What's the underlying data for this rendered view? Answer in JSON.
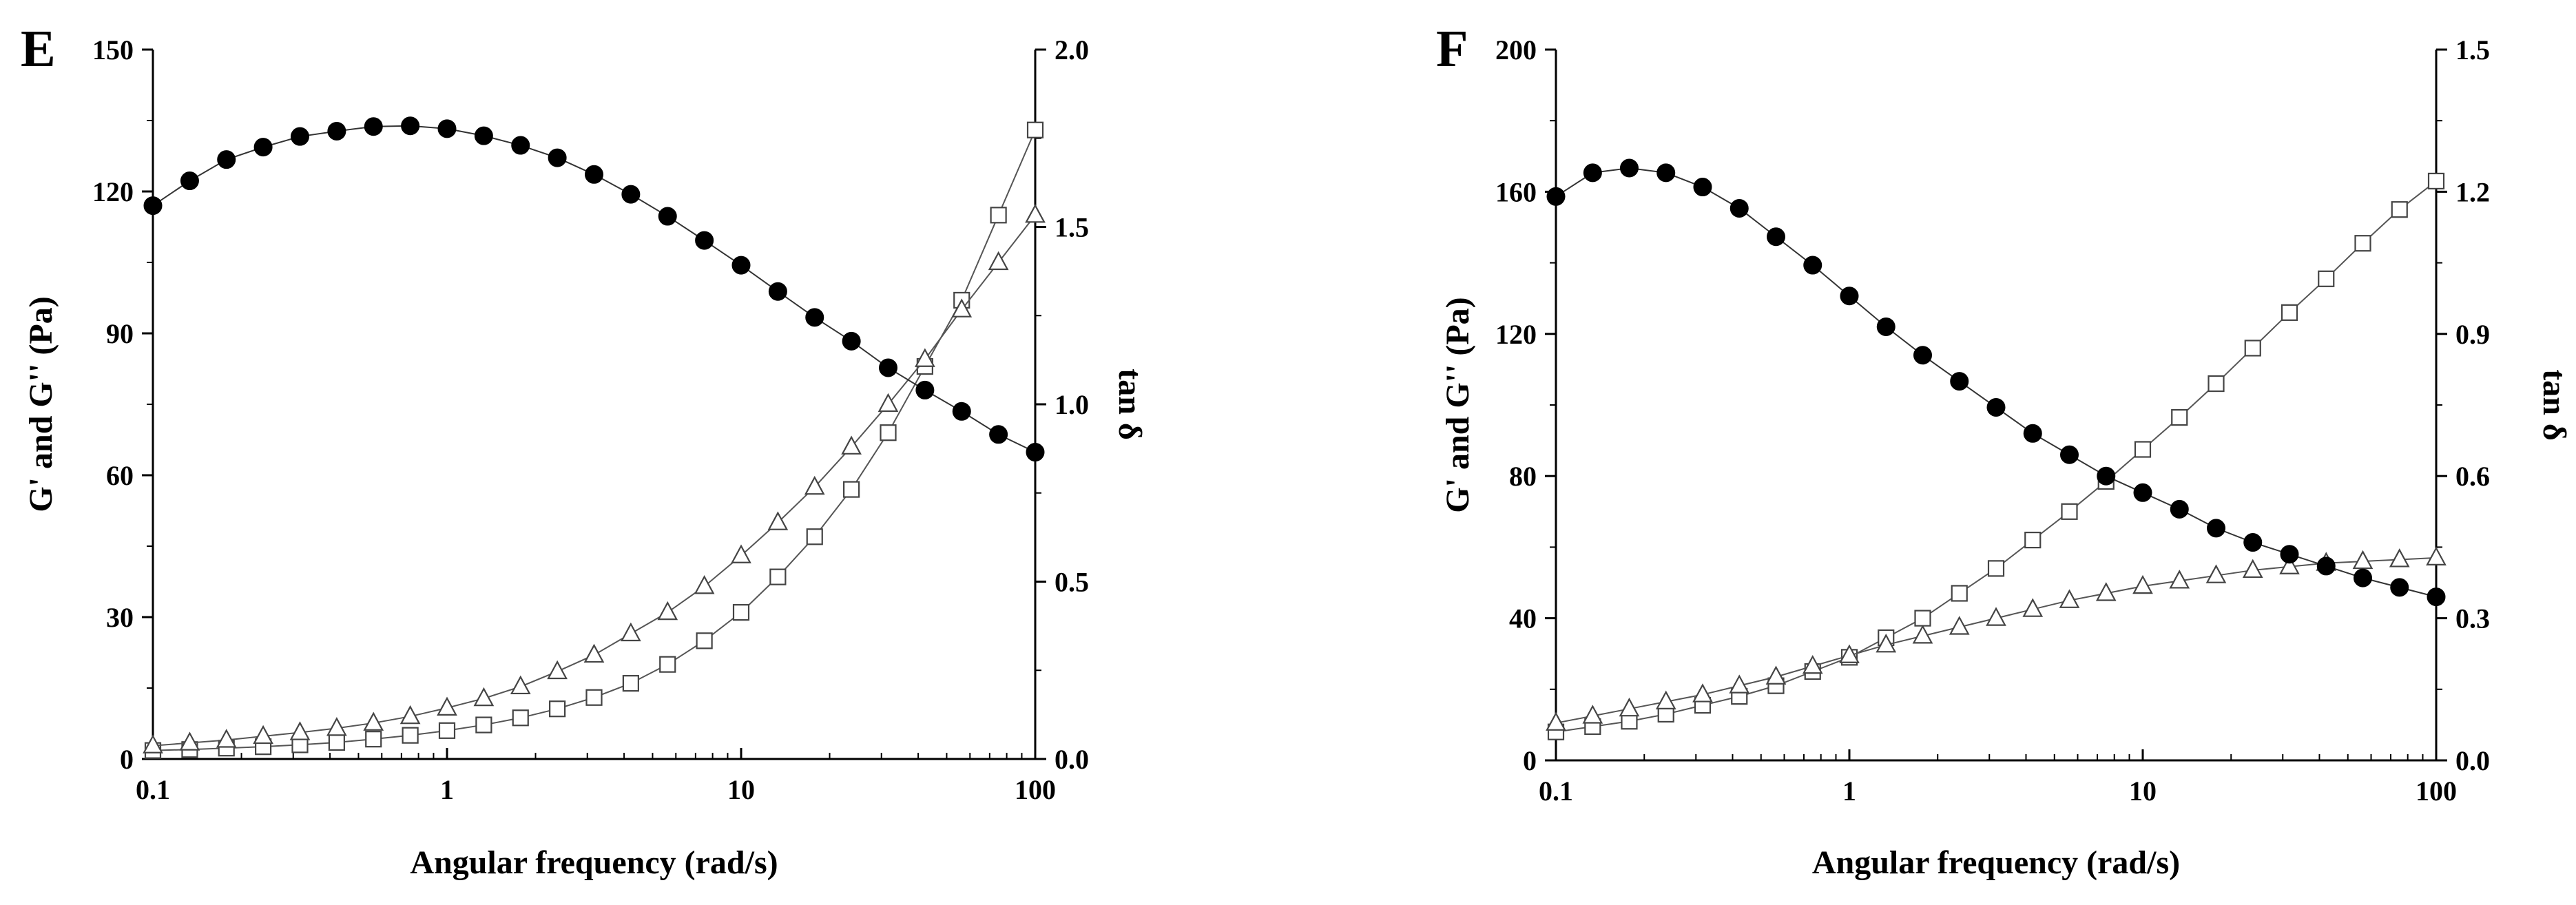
{
  "chart_data": [
    {
      "type": "line",
      "panel_label": "E",
      "xlabel": "Angular frequency (rad/s)",
      "ylabel": "G' and G'' (Pa)",
      "y2label": "tan δ",
      "xscale": "log",
      "xlim": [
        0.1,
        100
      ],
      "ylim": [
        0,
        150
      ],
      "y2lim": [
        0,
        2.0
      ],
      "x_ticks": [
        0.1,
        1,
        10,
        100
      ],
      "x_tick_labels": [
        "0.1",
        "1",
        "10",
        "100"
      ],
      "y_ticks": [
        0,
        30,
        60,
        90,
        120,
        150
      ],
      "y_tick_labels": [
        "0",
        "30",
        "60",
        "90",
        "120",
        "150"
      ],
      "y2_ticks": [
        0,
        0.5,
        1.0,
        1.5,
        2.0
      ],
      "y2_tick_labels": [
        "0.0",
        "0.5",
        "1.0",
        "1.5",
        "2.0"
      ],
      "x": [
        0.1,
        0.1334,
        0.1778,
        0.2371,
        0.3162,
        0.4217,
        0.5623,
        0.7499,
        1.0,
        1.3335,
        1.7783,
        2.3714,
        3.1623,
        4.217,
        5.6234,
        7.4989,
        10.0,
        13.3352,
        17.7828,
        23.7137,
        31.6228,
        42.1697,
        56.2341,
        74.9894,
        100.0
      ],
      "series": [
        {
          "name": "G'",
          "axis": "left",
          "marker": "square-open",
          "values": [
            1.8,
            2.0,
            2.3,
            2.6,
            3.0,
            3.5,
            4.2,
            5.0,
            6.0,
            7.2,
            8.7,
            10.6,
            13.0,
            16.0,
            20.0,
            25.0,
            31.0,
            38.5,
            47.0,
            57.0,
            69.0,
            83.0,
            97.0,
            115.0,
            133.0
          ]
        },
        {
          "name": "G''",
          "axis": "left",
          "marker": "triangle-open",
          "values": [
            2.8,
            3.4,
            4.0,
            4.8,
            5.6,
            6.5,
            7.6,
            9.0,
            10.8,
            12.8,
            15.3,
            18.5,
            22.0,
            26.5,
            31.0,
            36.5,
            43.0,
            50.0,
            57.5,
            66.0,
            75.0,
            84.5,
            95.0,
            105.0,
            115.0
          ]
        },
        {
          "name": "tan δ",
          "axis": "right",
          "marker": "circle-filled",
          "values": [
            1.56,
            1.63,
            1.69,
            1.725,
            1.755,
            1.77,
            1.783,
            1.785,
            1.777,
            1.757,
            1.73,
            1.695,
            1.648,
            1.592,
            1.53,
            1.462,
            1.392,
            1.318,
            1.245,
            1.178,
            1.103,
            1.04,
            0.98,
            0.915,
            0.865
          ]
        }
      ]
    },
    {
      "type": "line",
      "panel_label": "F",
      "xlabel": "Angular frequency (rad/s)",
      "ylabel": "G' and G'' (Pa)",
      "y2label": "tan δ",
      "xscale": "log",
      "xlim": [
        0.1,
        100
      ],
      "ylim": [
        0,
        200
      ],
      "y2lim": [
        0,
        1.5
      ],
      "x_ticks": [
        0.1,
        1,
        10,
        100
      ],
      "x_tick_labels": [
        "0.1",
        "1",
        "10",
        "100"
      ],
      "y_ticks": [
        0,
        40,
        80,
        120,
        160,
        200
      ],
      "y_tick_labels": [
        "0",
        "40",
        "80",
        "120",
        "160",
        "200"
      ],
      "y2_ticks": [
        0,
        0.3,
        0.6,
        0.9,
        1.2,
        1.5
      ],
      "y2_tick_labels": [
        "0.0",
        "0.3",
        "0.6",
        "0.9",
        "1.2",
        "1.5"
      ],
      "x": [
        0.1,
        0.1334,
        0.1778,
        0.2371,
        0.3162,
        0.4217,
        0.5623,
        0.7499,
        1.0,
        1.3335,
        1.7783,
        2.3714,
        3.1623,
        4.217,
        5.6234,
        7.4989,
        10.0,
        13.3352,
        17.7828,
        23.7137,
        31.6228,
        42.1697,
        56.2341,
        74.9894,
        100.0
      ],
      "series": [
        {
          "name": "G'",
          "axis": "left",
          "marker": "square-open",
          "values": [
            8.0,
            9.5,
            11.0,
            13.0,
            15.5,
            18.0,
            21.0,
            25.0,
            29.0,
            34.5,
            40.0,
            47.0,
            54.0,
            62.0,
            70.0,
            78.5,
            87.5,
            96.5,
            106.0,
            116.0,
            126.0,
            135.5,
            145.5,
            155.0,
            163.0
          ]
        },
        {
          "name": "G''",
          "axis": "left",
          "marker": "triangle-open",
          "values": [
            10.5,
            12.5,
            14.5,
            16.5,
            18.5,
            21.0,
            23.5,
            26.5,
            29.5,
            32.5,
            35.0,
            37.5,
            40.0,
            42.5,
            45.0,
            47.0,
            49.0,
            50.5,
            52.0,
            53.5,
            54.5,
            55.5,
            56.0,
            56.5,
            57.0
          ]
        },
        {
          "name": "tan δ",
          "axis": "right",
          "marker": "circle-filled",
          "values": [
            1.19,
            1.24,
            1.25,
            1.24,
            1.21,
            1.165,
            1.105,
            1.045,
            0.98,
            0.915,
            0.855,
            0.8,
            0.745,
            0.69,
            0.645,
            0.6,
            0.565,
            0.53,
            0.49,
            0.46,
            0.435,
            0.41,
            0.385,
            0.365,
            0.345
          ]
        }
      ]
    }
  ]
}
